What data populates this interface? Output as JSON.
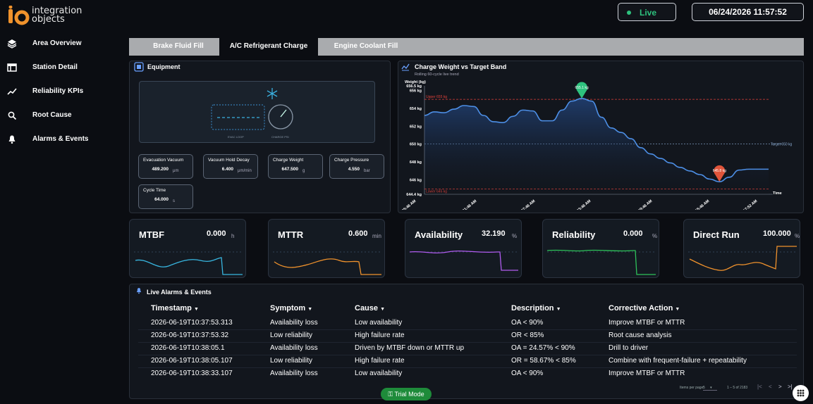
{
  "brand": {
    "logo_line1": "integration",
    "logo_line2": "objects"
  },
  "nav": [
    {
      "label": "Area Overview",
      "icon": "layers-icon"
    },
    {
      "label": "Station Detail",
      "icon": "table-icon"
    },
    {
      "label": "Reliability KPIs",
      "icon": "trend-icon"
    },
    {
      "label": "Root Cause",
      "icon": "search-icon"
    },
    {
      "label": "Alarms & Events",
      "icon": "bell-icon"
    }
  ],
  "header": {
    "live_label": "Live",
    "datetime": "06/24/2026 11:57:52",
    "live_color": "#2ec27e"
  },
  "tabs": [
    {
      "label": "Brake Fluid Fill",
      "active": false
    },
    {
      "label": "A/C Refrigerant Charge",
      "active": true
    },
    {
      "label": "Engine Coolant Fill",
      "active": false
    }
  ],
  "equipment": {
    "title": "Equipment",
    "diagram_left_label": "EVAC LOOP",
    "diagram_right_label": "CHARGE PSI",
    "metrics": [
      {
        "label": "Evacuation Vacuum",
        "value": "489.200",
        "unit": "μm"
      },
      {
        "label": "Vacuum Hold Decay",
        "value": "6.400",
        "unit": "μm/min"
      },
      {
        "label": "Charge Weight",
        "value": "647.500",
        "unit": "g"
      },
      {
        "label": "Charge Pressure",
        "value": "4.550",
        "unit": "bar"
      },
      {
        "label": "Cycle Time",
        "value": "64.000",
        "unit": "s"
      }
    ]
  },
  "chart_data": {
    "type": "line",
    "title": "Charge Weight vs Target Band",
    "subtitle": "Rolling 60-cycle live trend",
    "ylabel": "Weight (kg)",
    "xlabel": "Time",
    "ylim": [
      644.4,
      656.5
    ],
    "y_ticks": [
      "656.5 kg",
      "656 kg",
      "654 kg",
      "652 kg",
      "650 kg",
      "648 kg",
      "646 kg",
      "644.4 kg"
    ],
    "y_tick_values": [
      656.5,
      656,
      654,
      652,
      650,
      648,
      646,
      644.4
    ],
    "x_ticks": [
      "11:25:46 AM",
      "11:31:46 AM",
      "11:37:46 AM",
      "11:43:46 AM",
      "11:49:46 AM",
      "11:55:46 AM",
      "11:57:52 AM"
    ],
    "upper_label": "Upper 655 kg",
    "upper": 655,
    "lower_label": "Lower 645 kg",
    "lower": 645,
    "target_label": "Target 650 kg",
    "target": 650,
    "max_label": "655.1 kg",
    "min_label": "645.8 kg",
    "series": [
      {
        "values": [
          653.2,
          653.6,
          653.5,
          653.9,
          654.3,
          654.2,
          653.2,
          652.5,
          652.4,
          653.1,
          653.8,
          653.7,
          652.6,
          652.6,
          653.8,
          654.8,
          655.1,
          654.8,
          653.0,
          651.8,
          651.3,
          650.6,
          649.6,
          648.9,
          648.4,
          647.9,
          647.4,
          647.0,
          646.6,
          646.1,
          645.8,
          646.3,
          647.1,
          647.2,
          647.2,
          647.2
        ]
      }
    ],
    "colors": {
      "line": "#4d8fe6",
      "upper": "#e0403a",
      "target": "#8fb0d8",
      "max_marker": "#2ec27e",
      "min_marker": "#e0543a"
    }
  },
  "kpis": [
    {
      "title": "MTBF",
      "value": "0.000",
      "unit": "h",
      "color": "#38b6e0"
    },
    {
      "title": "MTTR",
      "value": "0.600",
      "unit": "min",
      "color": "#f0922c"
    },
    {
      "title": "Availability",
      "value": "32.190",
      "unit": "%",
      "color": "#b05cf0"
    },
    {
      "title": "Reliability",
      "value": "0.000",
      "unit": "%",
      "color": "#2ec25a"
    },
    {
      "title": "Direct Run",
      "value": "100.000",
      "unit": "%",
      "color": "#f0922c"
    }
  ],
  "alarms": {
    "title": "Live Alarms & Events",
    "columns": [
      "Timestamp",
      "Symptom",
      "Cause",
      "Description",
      "Corrective Action"
    ],
    "rows": [
      [
        "2026-06-19T10:37:53.313",
        "Availability loss",
        "Low availability",
        "OA < 90%",
        "Improve MTBF or MTTR"
      ],
      [
        "2026-06-19T10:37:53.32",
        "Low reliability",
        "High failure rate",
        "OR < 85%",
        "Root cause analysis"
      ],
      [
        "2026-06-19T10:38:05.1",
        "Availability loss",
        "Driven by MTBF down or MTTR up",
        "OA = 24.57% < 90%",
        "Drill to driver"
      ],
      [
        "2026-06-19T10:38:05.107",
        "Low reliability",
        "High failure rate",
        "OR = 58.67% < 85%",
        "Combine with frequent-failure + repeatability"
      ],
      [
        "2026-06-19T10:38:33.107",
        "Availability loss",
        "Low availability",
        "OA < 90%",
        "Improve MTBF or MTTR"
      ]
    ],
    "items_per_page_label": "Items per page:",
    "items_per_page": "5",
    "range": "1 – 5 of 2183"
  },
  "trial_label": "Trial Mode"
}
